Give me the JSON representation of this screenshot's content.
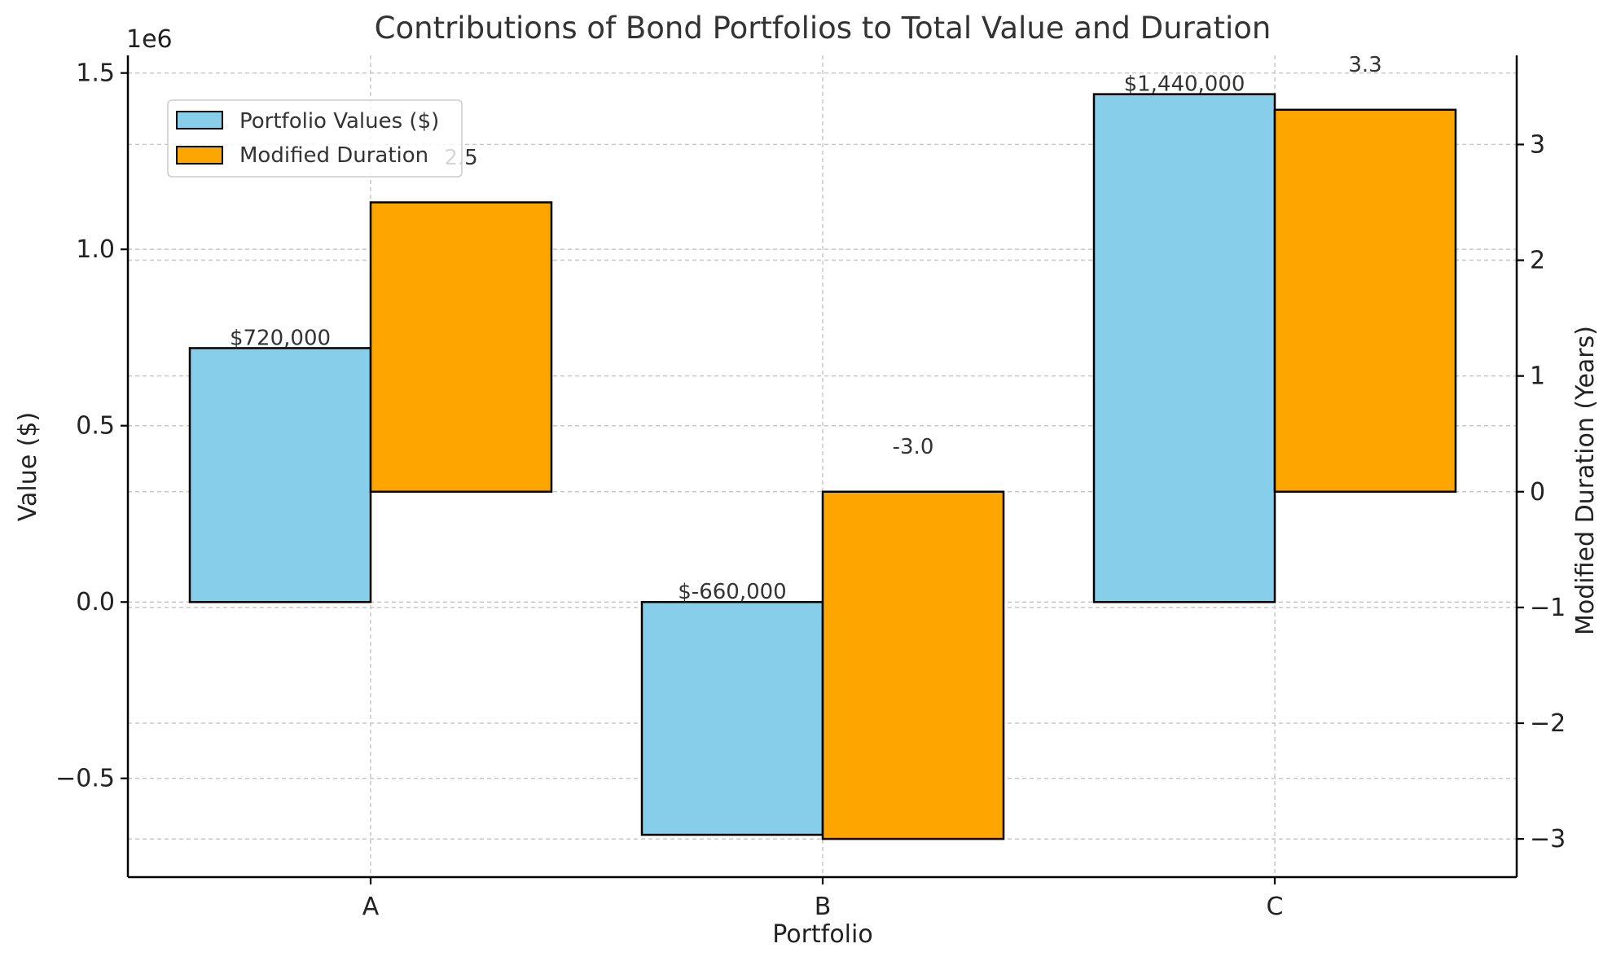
{
  "chart_data": {
    "type": "bar",
    "title": "Contributions of Bond Portfolios to Total Value and Duration",
    "xlabel": "Portfolio",
    "categories": [
      "A",
      "B",
      "C"
    ],
    "left_axis": {
      "label": "Value ($)",
      "offset_text": "1e6",
      "ylim": [
        -780000,
        1550000
      ],
      "ticks": [
        -0.5,
        0.0,
        0.5,
        1.0,
        1.5
      ],
      "tick_labels": [
        "−0.5",
        "0.0",
        "0.5",
        "1.0",
        "1.5"
      ],
      "tick_multiplier": 1000000
    },
    "right_axis": {
      "label": "Modified Duration (Years)",
      "ylim": [
        -3.33,
        3.77
      ],
      "ticks": [
        -3,
        -2,
        -1,
        0,
        1,
        2,
        3
      ],
      "tick_labels": [
        "−3",
        "−2",
        "−1",
        "0",
        "1",
        "2",
        "3"
      ]
    },
    "series": [
      {
        "name": "Portfolio Values ($)",
        "axis": "left",
        "color": "#87ceeb",
        "values": [
          720000,
          -660000,
          1440000
        ],
        "labels": [
          "$720,000",
          "$-660,000",
          "$1,440,000"
        ]
      },
      {
        "name": "Modified Duration",
        "axis": "right",
        "color": "#ffa500",
        "values": [
          2.5,
          -3.0,
          3.3
        ],
        "labels": [
          "2.5",
          "-3.0",
          "3.3"
        ]
      }
    ],
    "legend": {
      "position": "upper-left"
    },
    "grid": true
  }
}
